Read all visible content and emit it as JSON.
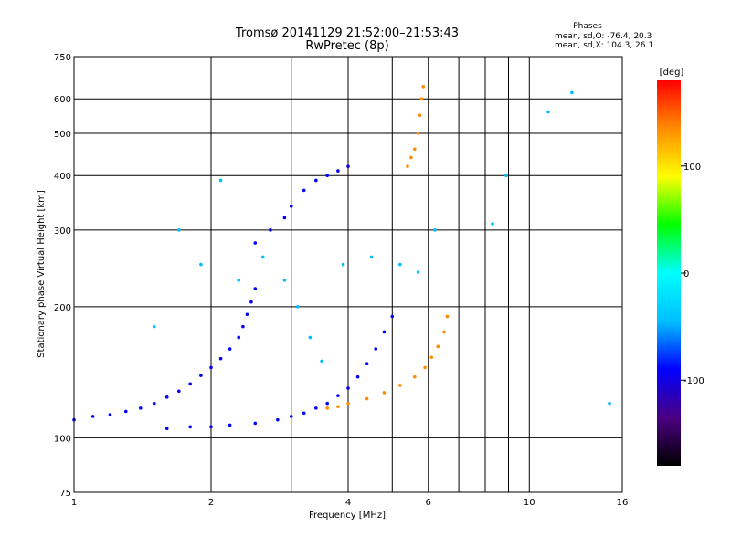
{
  "chart_data": {
    "type": "scatter",
    "title": "Tromsø 20141129 21:52:00–21:53:43",
    "subtitle": "RwPretec (8p)",
    "xlabel": "Frequency [MHz]",
    "ylabel": "Stationary phase Virtual Height [km]",
    "x_scale": "log",
    "y_scale": "log",
    "xlim": [
      1,
      16
    ],
    "ylim": [
      75,
      750
    ],
    "x_ticks": [
      1,
      2,
      4,
      6,
      10,
      16
    ],
    "x_minor_gridlines": [
      3,
      5,
      7,
      8,
      9
    ],
    "y_ticks": [
      75,
      100,
      200,
      300,
      400,
      500,
      600,
      750
    ],
    "grid": true,
    "phase_box": {
      "heading": "Phases",
      "line1": "mean, sd,O: -76.4, 20.3",
      "line2": "mean, sd,X: 104.3, 26.1"
    },
    "colorbar": {
      "label": "[deg]",
      "min": -180,
      "max": 180,
      "ticks": [
        100,
        0,
        -100
      ],
      "colors": [
        "#000000",
        "#4b0082",
        "#0000ff",
        "#00bfff",
        "#00ffff",
        "#00ff00",
        "#ffff00",
        "#ff8c00",
        "#ff0000"
      ]
    },
    "series": [
      {
        "trace": "low-band-echo",
        "phase": -105,
        "points": [
          [
            1.0,
            110
          ],
          [
            1.1,
            112
          ],
          [
            1.2,
            113
          ],
          [
            1.3,
            115
          ],
          [
            1.4,
            117
          ],
          [
            1.5,
            120
          ],
          [
            1.6,
            124
          ],
          [
            1.7,
            128
          ],
          [
            1.8,
            133
          ],
          [
            1.9,
            139
          ],
          [
            2.0,
            145
          ],
          [
            2.1,
            152
          ],
          [
            2.2,
            160
          ],
          [
            2.3,
            170
          ],
          [
            2.35,
            180
          ],
          [
            2.4,
            192
          ],
          [
            2.45,
            205
          ],
          [
            2.5,
            220
          ]
        ]
      },
      {
        "trace": "mid-band-echo",
        "phase": -70,
        "points": [
          [
            1.6,
            105
          ],
          [
            1.8,
            106
          ],
          [
            2.0,
            106
          ],
          [
            2.2,
            107
          ],
          [
            2.5,
            108
          ],
          [
            2.8,
            110
          ],
          [
            3.0,
            112
          ],
          [
            3.2,
            114
          ],
          [
            3.4,
            117
          ],
          [
            3.6,
            120
          ],
          [
            3.8,
            125
          ],
          [
            4.0,
            130
          ],
          [
            4.2,
            138
          ],
          [
            4.4,
            148
          ],
          [
            4.6,
            160
          ],
          [
            4.8,
            175
          ],
          [
            5.0,
            190
          ]
        ]
      },
      {
        "trace": "high-band-echo",
        "phase": 120,
        "points": [
          [
            3.6,
            117
          ],
          [
            3.8,
            118
          ],
          [
            4.0,
            120
          ],
          [
            4.4,
            123
          ],
          [
            4.8,
            127
          ],
          [
            5.2,
            132
          ],
          [
            5.6,
            138
          ],
          [
            5.9,
            145
          ],
          [
            6.1,
            153
          ],
          [
            6.3,
            162
          ],
          [
            6.5,
            175
          ],
          [
            6.6,
            190
          ]
        ]
      },
      {
        "trace": "upper-echo-x",
        "phase": 140,
        "points": [
          [
            5.4,
            420
          ],
          [
            5.5,
            440
          ],
          [
            5.6,
            460
          ],
          [
            5.7,
            500
          ],
          [
            5.75,
            550
          ],
          [
            5.8,
            600
          ],
          [
            5.85,
            640
          ]
        ]
      },
      {
        "trace": "upper-echo-o",
        "phase": -80,
        "points": [
          [
            2.5,
            280
          ],
          [
            2.7,
            300
          ],
          [
            2.9,
            320
          ],
          [
            3.0,
            340
          ],
          [
            3.2,
            370
          ],
          [
            3.4,
            390
          ],
          [
            3.6,
            400
          ],
          [
            3.8,
            410
          ],
          [
            4.0,
            420
          ]
        ]
      },
      {
        "trace": "scattered",
        "phase": -40,
        "points": [
          [
            1.5,
            180
          ],
          [
            1.7,
            300
          ],
          [
            1.9,
            250
          ],
          [
            2.1,
            390
          ],
          [
            2.3,
            230
          ],
          [
            2.6,
            260
          ],
          [
            2.9,
            230
          ],
          [
            3.1,
            200
          ],
          [
            3.3,
            170
          ],
          [
            3.5,
            150
          ],
          [
            3.9,
            250
          ],
          [
            4.5,
            260
          ],
          [
            5.2,
            250
          ],
          [
            5.7,
            240
          ],
          [
            6.2,
            300
          ],
          [
            8.3,
            310
          ],
          [
            8.9,
            400
          ],
          [
            11.0,
            560
          ],
          [
            12.4,
            620
          ],
          [
            15.0,
            120
          ]
        ]
      }
    ]
  }
}
